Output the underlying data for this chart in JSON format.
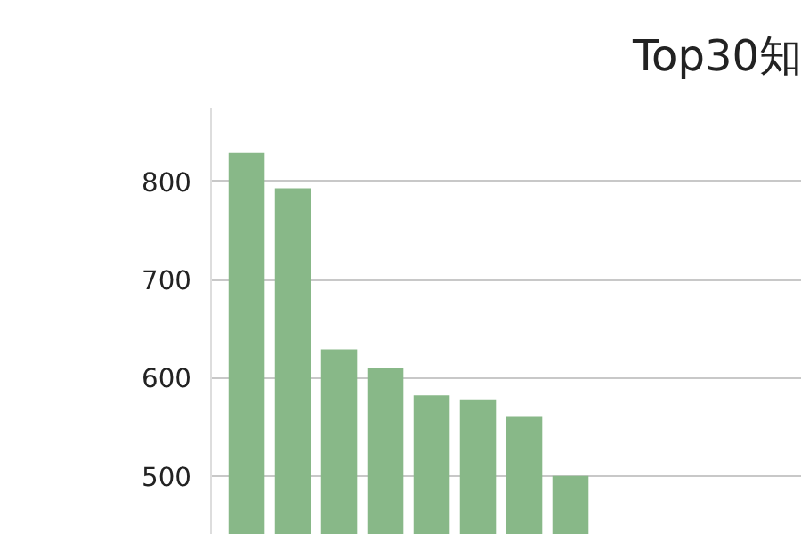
{
  "chart_data": {
    "type": "bar",
    "title": "Top30知",
    "categories": [
      null,
      null,
      null,
      null,
      null,
      null,
      null,
      null
    ],
    "values": [
      829,
      793,
      629,
      610,
      582,
      578,
      561,
      500
    ],
    "color": "#88b888",
    "ylim": [
      440,
      875
    ],
    "yticks": [
      500,
      600,
      700,
      800
    ],
    "grid": "y"
  }
}
